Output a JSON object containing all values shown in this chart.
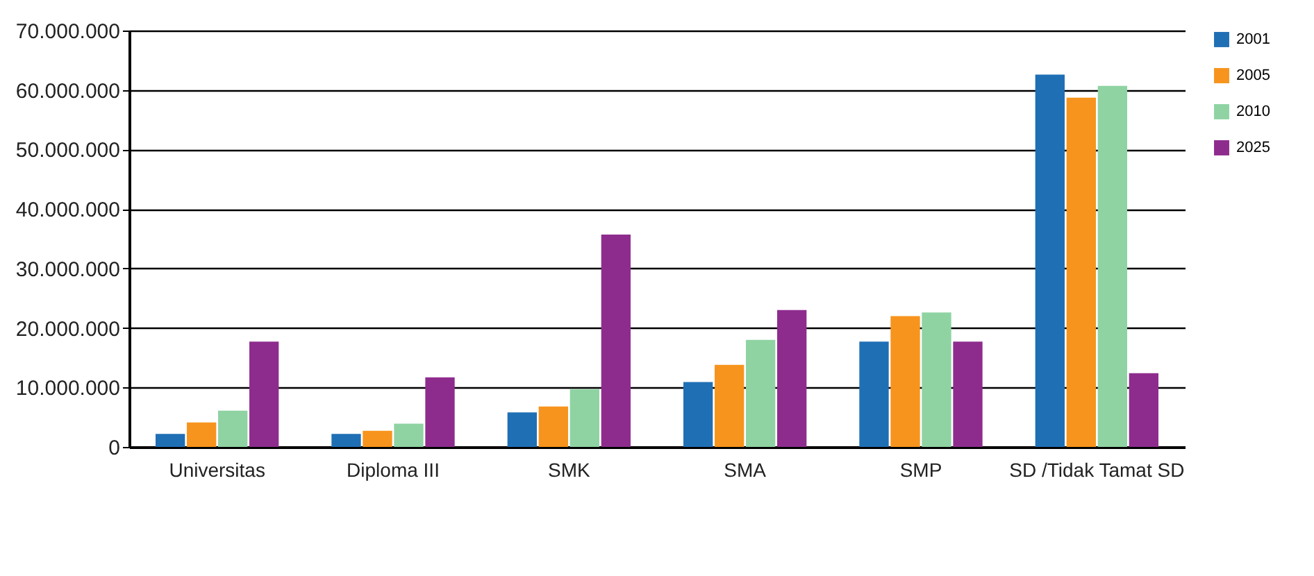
{
  "chart_data": {
    "type": "bar",
    "categories": [
      "Universitas",
      "Diploma III",
      "SMK",
      "SMA",
      "SMP",
      "SD /Tidak Tamat SD"
    ],
    "series": [
      {
        "name": "2001",
        "color": "#1f6fb5",
        "values": [
          2200000,
          2200000,
          5800000,
          10900000,
          17700000,
          62600000
        ]
      },
      {
        "name": "2005",
        "color": "#f7941d",
        "values": [
          4100000,
          2700000,
          6800000,
          13800000,
          22000000,
          58700000
        ]
      },
      {
        "name": "2010",
        "color": "#8fd3a3",
        "values": [
          6100000,
          3900000,
          9700000,
          18000000,
          22600000,
          60700000
        ]
      },
      {
        "name": "2025",
        "color": "#8e2c8e",
        "values": [
          17700000,
          11700000,
          35700000,
          23000000,
          17700000,
          12400000
        ]
      }
    ],
    "ylim": [
      0,
      70000000
    ],
    "yticks": [
      0,
      {
        "value": 10000000,
        "label": "10.000.000"
      },
      {
        "value": 20000000,
        "label": "20.000.000"
      },
      {
        "value": 30000000,
        "label": "30.000.000"
      },
      {
        "value": 40000000,
        "label": "40.000.000"
      },
      {
        "value": 50000000,
        "label": "50.000.000"
      },
      {
        "value": 60000000,
        "label": "60.000.000"
      },
      {
        "value": 70000000,
        "label": "70.000.000"
      }
    ],
    "grid": "y",
    "legend": "right"
  }
}
